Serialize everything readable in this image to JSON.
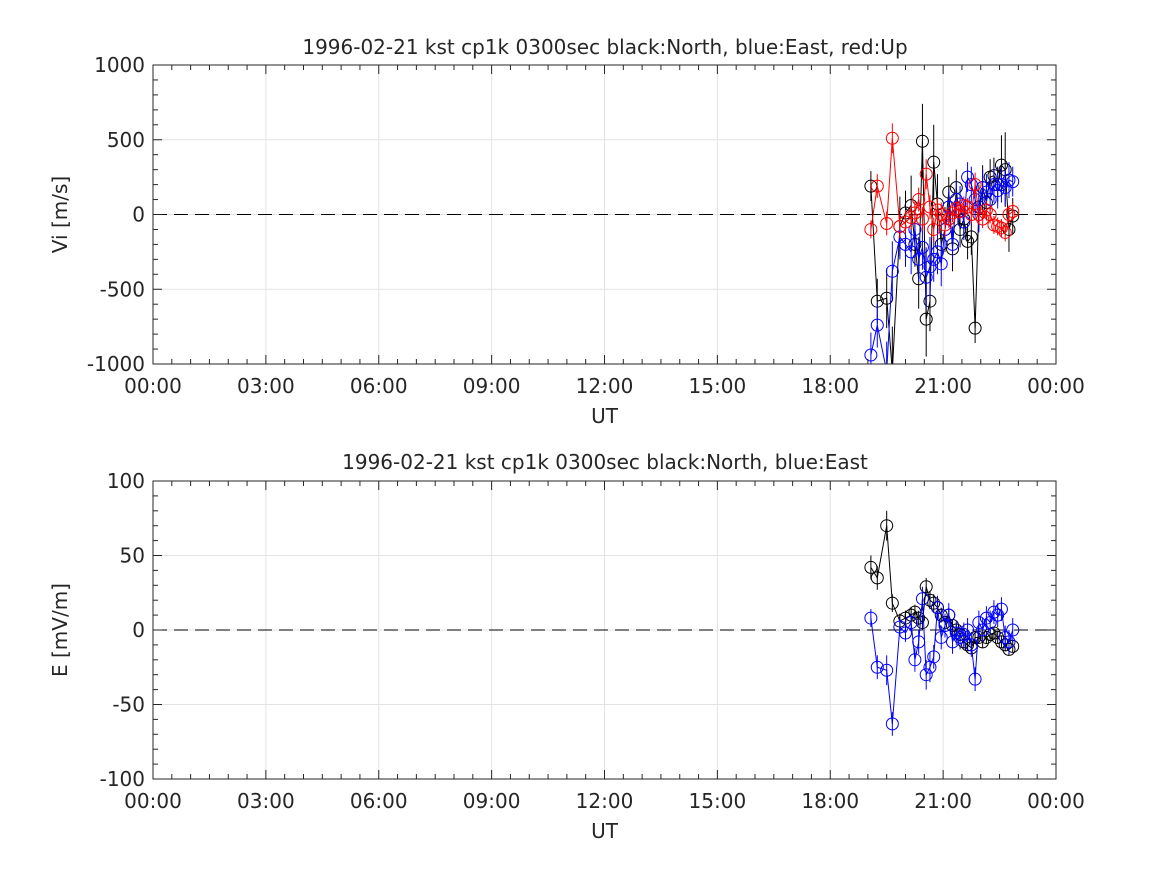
{
  "chart_data": [
    {
      "type": "scatter",
      "title": "1996-02-21 kst cp1k 0300sec black:North, blue:East, red:Up",
      "xlabel": "UT",
      "ylabel": "Vi [m/s]",
      "xlim": [
        0,
        24
      ],
      "ylim": [
        -1000,
        1000
      ],
      "xticks": [
        "00:00",
        "03:00",
        "06:00",
        "09:00",
        "12:00",
        "15:00",
        "18:00",
        "21:00",
        "00:00"
      ],
      "yticks": [
        "1000",
        "500",
        "0",
        "-500",
        "-1000"
      ],
      "grid": true,
      "zero_line": "dashed",
      "series": [
        {
          "color": "#000000",
          "x": [
            19.08,
            19.25,
            19.5,
            19.65,
            19.85,
            20.0,
            20.15,
            20.25,
            20.35,
            20.45,
            20.55,
            20.65,
            20.75,
            20.85,
            20.95,
            21.05,
            21.15,
            21.25,
            21.35,
            21.45,
            21.55,
            21.65,
            21.75,
            21.85,
            21.95,
            22.05,
            22.15,
            22.25,
            22.35,
            22.45,
            22.55,
            22.65,
            22.75,
            22.85
          ],
          "y": [
            190,
            -580,
            -560,
            -1050,
            -80,
            10,
            60,
            -200,
            -430,
            490,
            -700,
            -580,
            350,
            70,
            -200,
            -100,
            150,
            -230,
            180,
            -100,
            -30,
            -180,
            -150,
            -760,
            50,
            180,
            80,
            250,
            260,
            200,
            330,
            300,
            -100,
            -10
          ],
          "err": [
            100,
            150,
            200,
            300,
            200,
            150,
            200,
            150,
            200,
            250,
            250,
            200,
            250,
            200,
            150,
            150,
            100,
            150,
            120,
            120,
            120,
            120,
            120,
            100,
            150,
            150,
            120,
            120,
            120,
            120,
            200,
            250,
            150,
            120
          ]
        },
        {
          "color": "#0000ff",
          "x": [
            19.08,
            19.25,
            19.5,
            19.65,
            19.85,
            20.0,
            20.15,
            20.25,
            20.35,
            20.45,
            20.55,
            20.65,
            20.75,
            20.85,
            20.95,
            21.05,
            21.15,
            21.25,
            21.35,
            21.45,
            21.55,
            21.65,
            21.75,
            21.85,
            21.95,
            22.05,
            22.15,
            22.25,
            22.35,
            22.45,
            22.55,
            22.65,
            22.75,
            22.85
          ],
          "y": [
            -940,
            -740,
            -1050,
            -380,
            -150,
            -200,
            -250,
            -100,
            -300,
            -220,
            -420,
            -350,
            -300,
            -250,
            -330,
            -100,
            50,
            -200,
            100,
            70,
            -50,
            250,
            200,
            100,
            0,
            180,
            150,
            100,
            200,
            160,
            200,
            180,
            230,
            220
          ],
          "err": [
            150,
            150,
            200,
            200,
            150,
            150,
            150,
            120,
            150,
            150,
            200,
            200,
            150,
            150,
            150,
            120,
            120,
            120,
            120,
            120,
            120,
            100,
            120,
            120,
            120,
            120,
            120,
            120,
            120,
            120,
            120,
            120,
            120,
            100
          ]
        },
        {
          "color": "#ff0000",
          "x": [
            19.08,
            19.25,
            19.5,
            19.65,
            19.85,
            20.0,
            20.15,
            20.25,
            20.35,
            20.45,
            20.55,
            20.65,
            20.75,
            20.85,
            20.95,
            21.05,
            21.15,
            21.25,
            21.35,
            21.45,
            21.55,
            21.65,
            21.75,
            21.85,
            21.95,
            22.05,
            22.15,
            22.25,
            22.35,
            22.45,
            22.55,
            22.65,
            22.75,
            22.85
          ],
          "y": [
            -100,
            190,
            -60,
            510,
            -80,
            -50,
            -20,
            10,
            100,
            -30,
            270,
            50,
            -100,
            30,
            0,
            -70,
            -30,
            10,
            40,
            20,
            60,
            50,
            0,
            200,
            0,
            -30,
            30,
            0,
            -70,
            -80,
            -90,
            -120,
            0,
            20
          ],
          "err": [
            60,
            80,
            80,
            100,
            80,
            80,
            80,
            80,
            80,
            80,
            100,
            80,
            80,
            80,
            80,
            80,
            60,
            60,
            60,
            60,
            60,
            60,
            60,
            80,
            60,
            60,
            60,
            60,
            60,
            60,
            60,
            60,
            60,
            60
          ]
        }
      ]
    },
    {
      "type": "scatter",
      "title": "1996-02-21 kst cp1k 0300sec black:North, blue:East",
      "xlabel": "UT",
      "ylabel": "E [mV/m]",
      "xlim": [
        0,
        24
      ],
      "ylim": [
        -100,
        100
      ],
      "xticks": [
        "00:00",
        "03:00",
        "06:00",
        "09:00",
        "12:00",
        "15:00",
        "18:00",
        "21:00",
        "00:00"
      ],
      "yticks": [
        "100",
        "50",
        "0",
        "-50",
        "-100"
      ],
      "grid": true,
      "zero_line": "dashed",
      "series": [
        {
          "color": "#000000",
          "x": [
            19.08,
            19.25,
            19.5,
            19.65,
            19.85,
            20.0,
            20.15,
            20.25,
            20.35,
            20.45,
            20.55,
            20.65,
            20.75,
            20.85,
            20.95,
            21.05,
            21.15,
            21.25,
            21.35,
            21.45,
            21.55,
            21.65,
            21.75,
            21.85,
            21.95,
            22.05,
            22.15,
            22.25,
            22.35,
            22.45,
            22.55,
            22.65,
            22.75,
            22.85
          ],
          "y": [
            42,
            35,
            70,
            18,
            6,
            8,
            10,
            12,
            8,
            5,
            29,
            20,
            18,
            15,
            10,
            5,
            10,
            3,
            0,
            -3,
            -8,
            -10,
            -12,
            -5,
            -5,
            -8,
            -5,
            -3,
            -2,
            -5,
            -8,
            -10,
            -13,
            -11
          ],
          "err": [
            8,
            8,
            10,
            6,
            5,
            5,
            5,
            5,
            5,
            5,
            6,
            6,
            6,
            5,
            5,
            4,
            4,
            4,
            4,
            4,
            4,
            4,
            4,
            4,
            4,
            4,
            4,
            4,
            4,
            4,
            4,
            4,
            4,
            4
          ]
        },
        {
          "color": "#0000ff",
          "x": [
            19.08,
            19.25,
            19.5,
            19.65,
            19.85,
            20.0,
            20.15,
            20.25,
            20.35,
            20.45,
            20.55,
            20.65,
            20.75,
            20.85,
            20.95,
            21.05,
            21.15,
            21.25,
            21.35,
            21.45,
            21.55,
            21.65,
            21.75,
            21.85,
            21.95,
            22.05,
            22.15,
            22.25,
            22.35,
            22.45,
            22.55,
            22.65,
            22.75,
            22.85
          ],
          "y": [
            8,
            -25,
            -27,
            -63,
            2,
            -2,
            5,
            -20,
            -8,
            21,
            -30,
            -25,
            -18,
            15,
            -5,
            3,
            10,
            -8,
            -2,
            -5,
            -3,
            0,
            -10,
            -33,
            5,
            0,
            8,
            5,
            12,
            10,
            14,
            -5,
            -8,
            0
          ],
          "err": [
            6,
            8,
            10,
            8,
            6,
            6,
            6,
            8,
            8,
            8,
            10,
            10,
            8,
            8,
            8,
            8,
            8,
            8,
            8,
            8,
            8,
            8,
            8,
            8,
            8,
            8,
            8,
            8,
            8,
            8,
            8,
            8,
            8,
            8
          ]
        }
      ]
    }
  ]
}
